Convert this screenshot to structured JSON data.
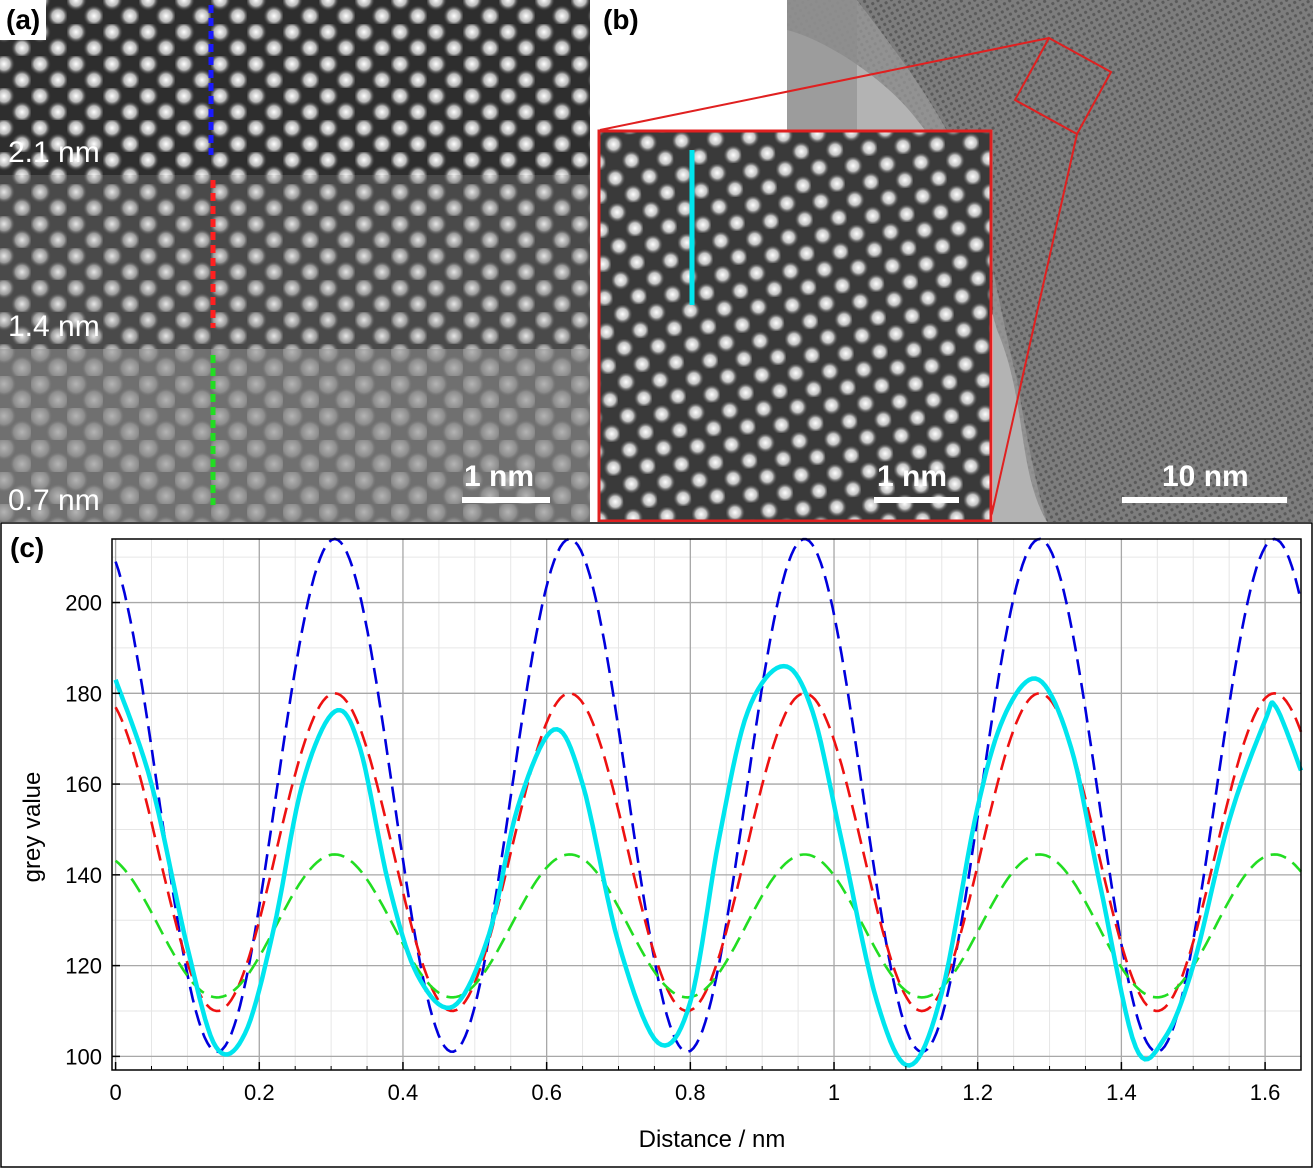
{
  "panel_a": {
    "letter": "(a)",
    "sections": [
      {
        "label": "2.1 nm",
        "line_color": "#1a1aff"
      },
      {
        "label": "1.4 nm",
        "line_color": "#ff2020"
      },
      {
        "label": "0.7 nm",
        "line_color": "#22dd22"
      }
    ],
    "scalebar": "1 nm"
  },
  "panel_b": {
    "letter": "(b)",
    "inset_scalebar": "1 nm",
    "main_scalebar": "10 nm",
    "inset_line_color": "#00e5ee",
    "box_color": "#e02020"
  },
  "panel_c": {
    "letter": "(c)"
  },
  "chart_data": {
    "type": "line",
    "title": "",
    "xlabel": "Distance / nm",
    "ylabel": "grey value",
    "xlim": [
      -0.005,
      1.65
    ],
    "ylim": [
      97,
      214
    ],
    "xticks": [
      "0",
      "0.2",
      "0.4",
      "0.6",
      "0.8",
      "1",
      "1.2",
      "1.4",
      "1.6"
    ],
    "yticks": [
      "100",
      "120",
      "140",
      "160",
      "180",
      "200"
    ],
    "grid": true,
    "series": [
      {
        "color": "#0000dd",
        "style": "dashed",
        "period": 0.327,
        "phase": 0.305,
        "mean": 157.5,
        "amplitude": 56.5
      },
      {
        "color": "#ee1111",
        "style": "dashed",
        "period": 0.327,
        "phase": 0.305,
        "mean": 145,
        "amplitude": 35
      },
      {
        "color": "#22dd22",
        "style": "dashed",
        "period": 0.327,
        "phase": 0.305,
        "mean": 128.75,
        "amplitude": 15.75
      },
      {
        "color": "#00e5ee",
        "style": "solid",
        "x": [
          0,
          0.05,
          0.1,
          0.14,
          0.18,
          0.22,
          0.26,
          0.305,
          0.34,
          0.38,
          0.42,
          0.47,
          0.52,
          0.56,
          0.61,
          0.65,
          0.7,
          0.755,
          0.8,
          0.84,
          0.88,
          0.93,
          0.97,
          1.01,
          1.06,
          1.105,
          1.15,
          1.2,
          1.24,
          1.285,
          1.33,
          1.37,
          1.42,
          1.46,
          1.5,
          1.55,
          1.6,
          1.615,
          1.65
        ],
        "y": [
          183,
          160,
          124,
          102,
          105,
          128,
          160,
          176,
          168,
          138,
          118,
          111,
          127,
          155,
          172,
          160,
          125,
          103,
          112,
          148,
          176,
          186,
          176,
          148,
          112,
          98,
          114,
          155,
          176,
          183,
          168,
          138,
          102,
          104,
          120,
          152,
          174,
          177,
          163
        ]
      }
    ]
  }
}
